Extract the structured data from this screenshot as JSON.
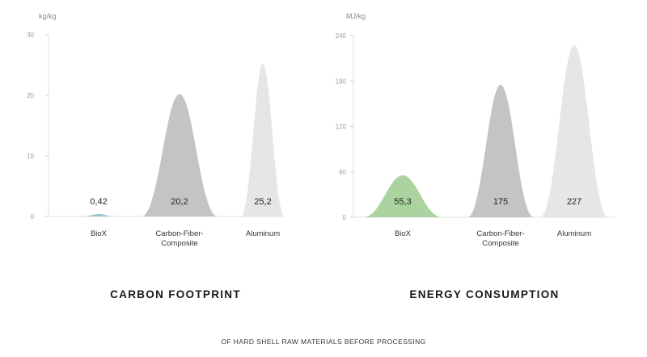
{
  "caption": "OF HARD SHELL RAW MATERIALS BEFORE PROCESSING",
  "chart_data": [
    {
      "type": "area",
      "title": "CARBON FOOTPRINT",
      "ylabel": "kg/kg",
      "ylim": [
        0,
        30
      ],
      "yticks": [
        0,
        10,
        20,
        30
      ],
      "categories": [
        [
          "BioX"
        ],
        [
          "Carbon-Fiber-",
          "Composite"
        ],
        [
          "Aluminum"
        ]
      ],
      "values": [
        0.42,
        20.2,
        25.2
      ],
      "value_labels": [
        "0,42",
        "20,2",
        "25,2"
      ],
      "colors": [
        "#9ec4d0",
        "#c4c4c4",
        "#e6e6e6"
      ],
      "grid": false
    },
    {
      "type": "area",
      "title": "ENERGY CONSUMPTION",
      "ylabel": "MJ/kg",
      "ylim": [
        0,
        240
      ],
      "yticks": [
        0,
        60,
        120,
        180,
        240
      ],
      "categories": [
        [
          "BioX"
        ],
        [
          "Carbon-Fiber-",
          "Composite"
        ],
        [
          "Aluminum"
        ]
      ],
      "values": [
        55.3,
        175,
        227
      ],
      "value_labels": [
        "55,3",
        "175",
        "227"
      ],
      "colors": [
        "#abd39f",
        "#c4c4c4",
        "#e6e6e6"
      ],
      "grid": false
    }
  ]
}
